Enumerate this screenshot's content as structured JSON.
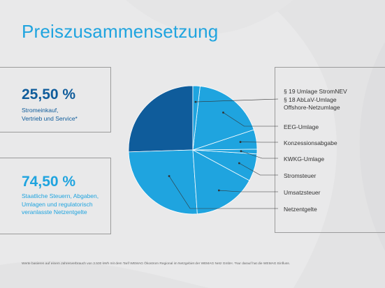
{
  "title": "Preiszusammensetzung",
  "colors": {
    "dark_blue": "#0f5c9b",
    "light_blue": "#1fa4df",
    "background": "#e9e9ea",
    "border": "#9b9b9b"
  },
  "left_panels": [
    {
      "value": "25,50 %",
      "lines": [
        "Stromeinkauf,",
        "Vertrieb und Service*"
      ]
    },
    {
      "value": "74,50 %",
      "lines": [
        "Staatliche Steuern, Abgaben,",
        "Umlagen und regulatorisch",
        "veranlasste Netzentgelte"
      ]
    }
  ],
  "legend": {
    "top_block": [
      "§ 19 Umlage StromNEV",
      "§ 18 AbLaV-Umlage",
      "Offshore-Netzumlage"
    ],
    "items": [
      "EEG-Umlage",
      "Konzessionsabgabe",
      "KWKG-Umlage",
      "Stromsteuer",
      "Umsatzsteuer",
      "Netzentgelte"
    ]
  },
  "footnote": "Werte basieren auf einem Jahresverbrauch von 3.500 kWh mit dem Tarif WEMAG Ökostrom Regional im Netzgebiet der WEMAG Netz GmbH. *Nur darauf hat die WEMAG Einfluss.",
  "chart_data": {
    "type": "pie",
    "title": "Preiszusammensetzung",
    "unit": "%",
    "slices": [
      {
        "name": "Stromeinkauf, Vertrieb und Service",
        "value": 25.5,
        "color": "#0f5c9b"
      },
      {
        "name": "Netzentgelte",
        "value": 25.6,
        "color": "#1fa4df"
      },
      {
        "name": "Umsatzsteuer",
        "value": 16.0,
        "color": "#1fa4df"
      },
      {
        "name": "Stromsteuer",
        "value": 6.9,
        "color": "#1fa4df"
      },
      {
        "name": "KWKG-Umlage",
        "value": 1.2,
        "color": "#1fa4df"
      },
      {
        "name": "Konzessionsabgabe",
        "value": 4.9,
        "color": "#1fa4df"
      },
      {
        "name": "EEG-Umlage",
        "value": 18.1,
        "color": "#1fa4df"
      },
      {
        "name": "§ 19 Umlage StromNEV / § 18 AbLaV-Umlage / Offshore-Netzumlage",
        "value": 1.8,
        "color": "#1fa4df"
      }
    ]
  }
}
